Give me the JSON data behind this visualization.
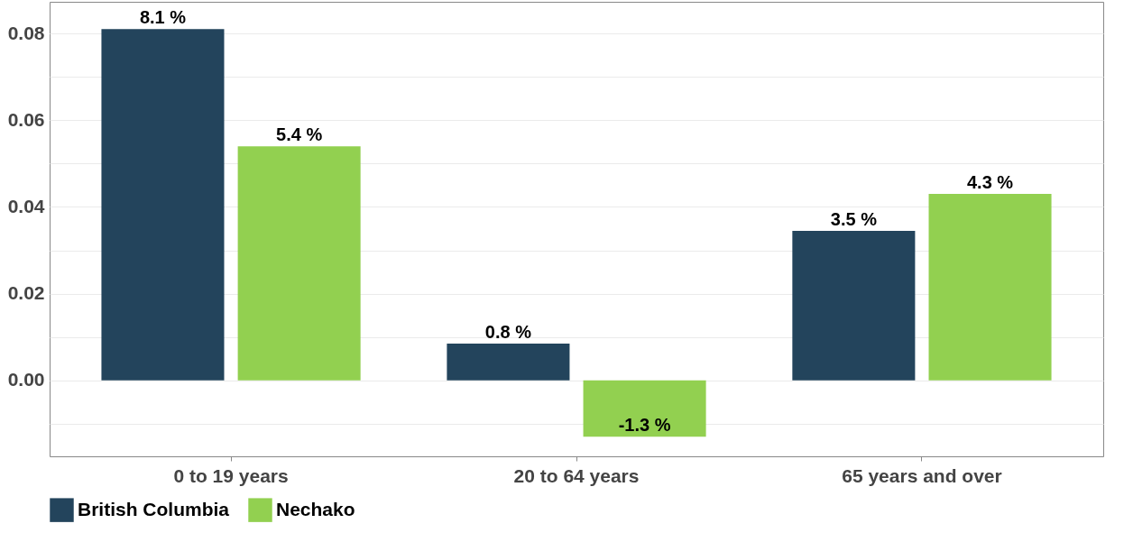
{
  "chart_data": {
    "type": "bar",
    "categories": [
      "0 to 19 years",
      "20 to 64 years",
      "65 years and over"
    ],
    "series": [
      {
        "name": "British Columbia",
        "color": "#23445c",
        "values": [
          0.081,
          0.0085,
          0.0345
        ],
        "value_labels": [
          "8.1 %",
          "0.8 %",
          "3.5 %"
        ]
      },
      {
        "name": "Nechako",
        "color": "#92d050",
        "values": [
          0.054,
          -0.013,
          0.043
        ],
        "value_labels": [
          "5.4 %",
          "-1.3 %",
          "4.3 %"
        ]
      }
    ],
    "ylim": [
      -0.0175,
      0.0873
    ],
    "yticks": [
      {
        "value": -0.01,
        "label": null
      },
      {
        "value": 0,
        "label": "0.00"
      },
      {
        "value": 0.01,
        "label": null
      },
      {
        "value": 0.02,
        "label": "0.02"
      },
      {
        "value": 0.03,
        "label": null
      },
      {
        "value": 0.04,
        "label": "0.04"
      },
      {
        "value": 0.05,
        "label": null
      },
      {
        "value": 0.06,
        "label": "0.06"
      },
      {
        "value": 0.07,
        "label": null
      },
      {
        "value": 0.08,
        "label": "0.08"
      }
    ],
    "grid": "y",
    "legend": "bottom"
  }
}
